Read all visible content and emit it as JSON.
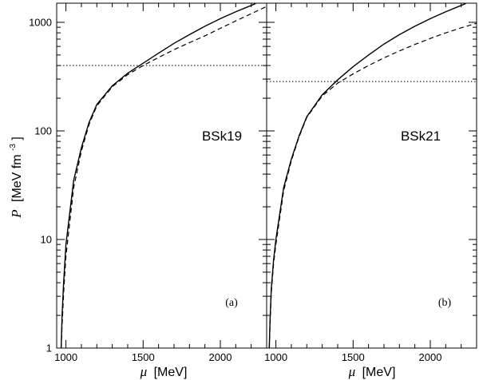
{
  "chart_data": [
    {
      "type": "line",
      "panel_label": "(a)",
      "model_name": "BSk19",
      "xlim": [
        940,
        2300
      ],
      "ylim": [
        1,
        1500
      ],
      "y_scale": "log",
      "x_ticks": [
        1000,
        1500,
        2000
      ],
      "y_ticks": [
        1,
        10,
        100,
        1000
      ],
      "x_axis_symbol": "μ",
      "x_axis_unit": "[MeV]",
      "y_axis_symbol": "P",
      "y_axis_unit": "[MeV fm",
      "y_axis_unit_exp": "-3",
      "y_axis_unit_close": "]",
      "series": [
        {
          "style": "solid",
          "x": [
            969,
            975,
            985,
            1000,
            1050,
            1100,
            1150,
            1200,
            1300,
            1400,
            1500,
            1600,
            1700,
            1800,
            1900,
            2000,
            2100,
            2200,
            2230
          ],
          "y": [
            1,
            2,
            4,
            9,
            35,
            70,
            120,
            175,
            260,
            340,
            420,
            520,
            640,
            770,
            920,
            1080,
            1250,
            1430,
            1490
          ]
        },
        {
          "style": "dashed",
          "x": [
            969,
            975,
            985,
            1000,
            1050,
            1100,
            1150,
            1200,
            1300,
            1400,
            1500,
            1600,
            1700,
            1800,
            1900,
            2000,
            2100,
            2200,
            2300
          ],
          "y": [
            1,
            1.6,
            3.2,
            7,
            30,
            65,
            115,
            170,
            255,
            330,
            400,
            475,
            560,
            650,
            750,
            880,
            1030,
            1200,
            1400
          ]
        },
        {
          "style": "dotted",
          "x": [
            940,
            2300
          ],
          "y": [
            400,
            400
          ]
        }
      ]
    },
    {
      "type": "line",
      "panel_label": "(b)",
      "model_name": "BSk21",
      "xlim": [
        940,
        2300
      ],
      "ylim": [
        1,
        1500
      ],
      "y_scale": "log",
      "x_ticks": [
        1000,
        1500,
        2000
      ],
      "y_ticks": [
        1,
        10,
        100,
        1000
      ],
      "x_axis_symbol": "μ",
      "x_axis_unit": "[MeV]",
      "series": [
        {
          "style": "solid",
          "x": [
            957,
            962,
            970,
            985,
            1000,
            1050,
            1100,
            1150,
            1200,
            1300,
            1400,
            1500,
            1600,
            1700,
            1800,
            1900,
            2000,
            2100,
            2200,
            2230
          ],
          "y": [
            1,
            1.8,
            3.5,
            6.5,
            10,
            30,
            55,
            90,
            135,
            215,
            295,
            390,
            500,
            630,
            770,
            920,
            1080,
            1250,
            1430,
            1490
          ]
        },
        {
          "style": "dashed",
          "x": [
            957,
            962,
            970,
            985,
            1000,
            1050,
            1100,
            1150,
            1200,
            1300,
            1400,
            1500,
            1600,
            1700,
            1800,
            1900,
            2000,
            2100,
            2200,
            2300
          ],
          "y": [
            1,
            1.6,
            3.2,
            6,
            9,
            28,
            53,
            88,
            133,
            210,
            275,
            335,
            400,
            470,
            545,
            625,
            710,
            800,
            890,
            980
          ]
        },
        {
          "style": "dotted",
          "x": [
            940,
            2300
          ],
          "y": [
            285,
            285
          ]
        }
      ]
    }
  ]
}
